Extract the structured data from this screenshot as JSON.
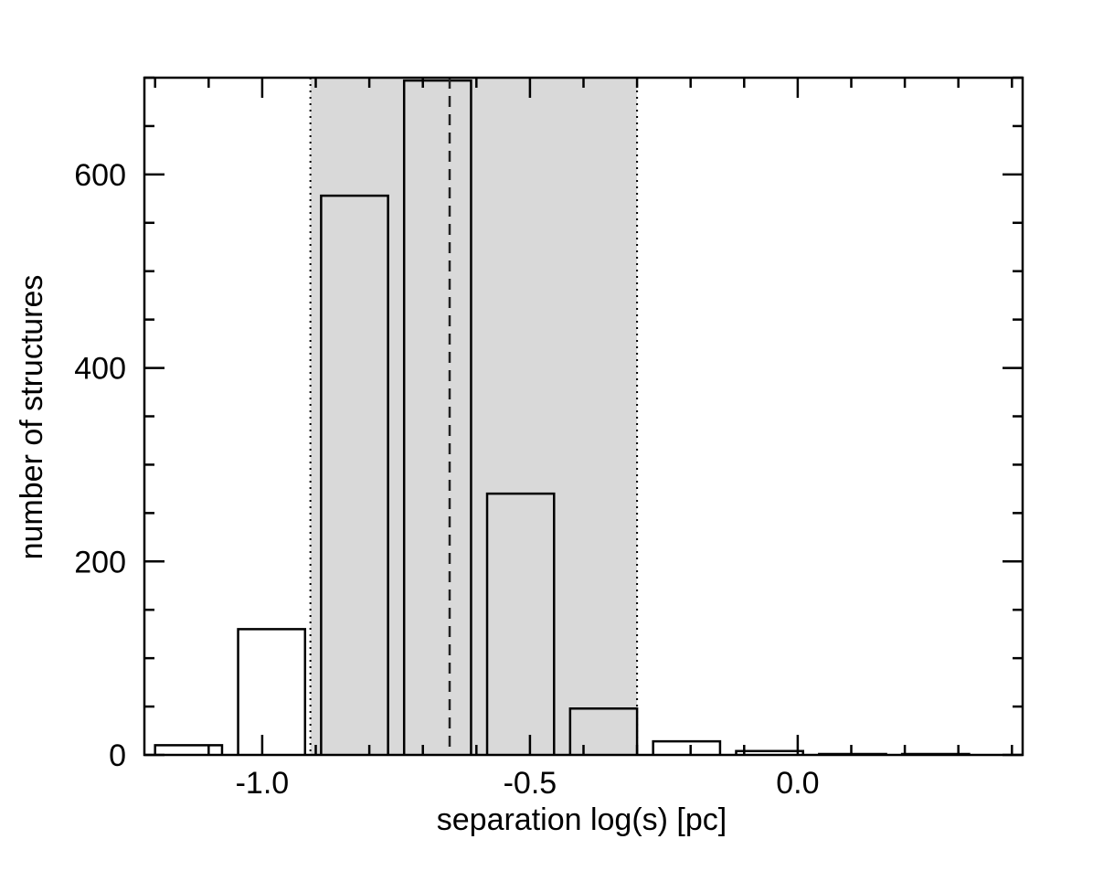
{
  "chart_data": {
    "type": "bar",
    "xlabel": "separation log(s) [pc]",
    "ylabel": "number of structures",
    "xlim": [
      -1.22,
      0.42
    ],
    "ylim": [
      0,
      700
    ],
    "x_ticks": [
      -1.0,
      -0.5,
      0.0
    ],
    "x_tick_labels": [
      "-1.0",
      "-0.5",
      "0.0"
    ],
    "y_ticks": [
      0,
      200,
      400,
      600
    ],
    "y_tick_labels": [
      "0",
      "200",
      "400",
      "600"
    ],
    "bins": [
      {
        "x0": -1.2,
        "x1": -1.075,
        "value": 10
      },
      {
        "x0": -1.045,
        "x1": -0.92,
        "value": 130
      },
      {
        "x0": -0.89,
        "x1": -0.765,
        "value": 578
      },
      {
        "x0": -0.735,
        "x1": -0.61,
        "value": 697
      },
      {
        "x0": -0.58,
        "x1": -0.455,
        "value": 270
      },
      {
        "x0": -0.425,
        "x1": -0.3,
        "value": 48
      },
      {
        "x0": -0.27,
        "x1": -0.145,
        "value": 14
      },
      {
        "x0": -0.115,
        "x1": 0.01,
        "value": 4
      },
      {
        "x0": 0.04,
        "x1": 0.165,
        "value": 1
      },
      {
        "x0": 0.195,
        "x1": 0.32,
        "value": 1
      }
    ],
    "shaded_range": [
      -0.91,
      -0.3
    ],
    "dashed_line_x": -0.65,
    "dotted_lines_x": [
      -0.91,
      -0.3
    ],
    "shade_color": "#d9d9d9",
    "grid": false,
    "legend": "none"
  }
}
